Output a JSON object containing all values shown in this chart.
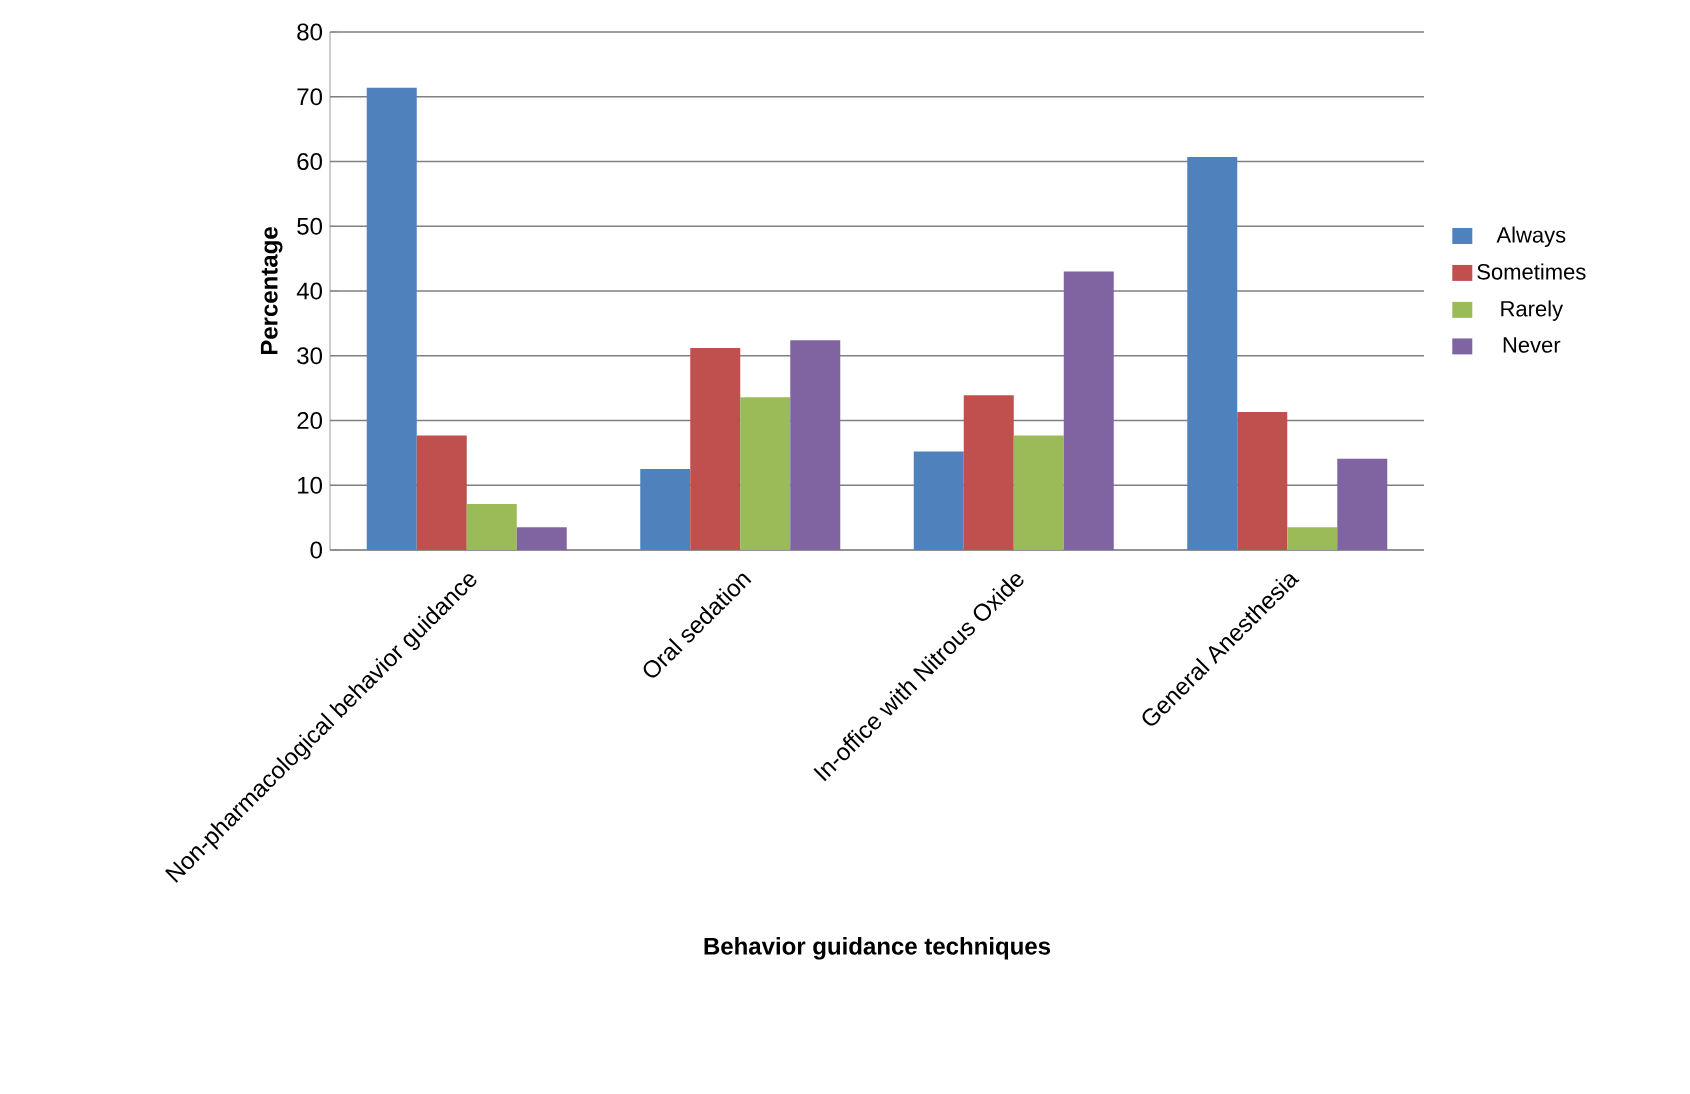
{
  "chart_data": {
    "type": "bar",
    "xlabel": "Behavior guidance techniques",
    "ylabel": "Percentage",
    "categories": [
      "Non-pharmacological behavior guidance",
      "Oral sedation",
      "In-office with Nitrous Oxide",
      "General Anesthesia"
    ],
    "series": [
      {
        "name": "Always",
        "color": "#4f81bd",
        "values": [
          71.4,
          12.5,
          15.2,
          60.7
        ]
      },
      {
        "name": "Sometimes",
        "color": "#c0504d",
        "values": [
          17.7,
          31.2,
          23.9,
          21.3
        ]
      },
      {
        "name": "Rarely",
        "color": "#9bbb59",
        "values": [
          7.1,
          23.6,
          17.7,
          3.5
        ]
      },
      {
        "name": "Never",
        "color": "#8064a2",
        "values": [
          3.5,
          32.4,
          43.0,
          14.1
        ]
      }
    ],
    "ylim": [
      0,
      80
    ],
    "yticks": [
      0,
      10,
      20,
      30,
      40,
      50,
      60,
      70,
      80
    ],
    "grid": "y",
    "legend": "right"
  }
}
